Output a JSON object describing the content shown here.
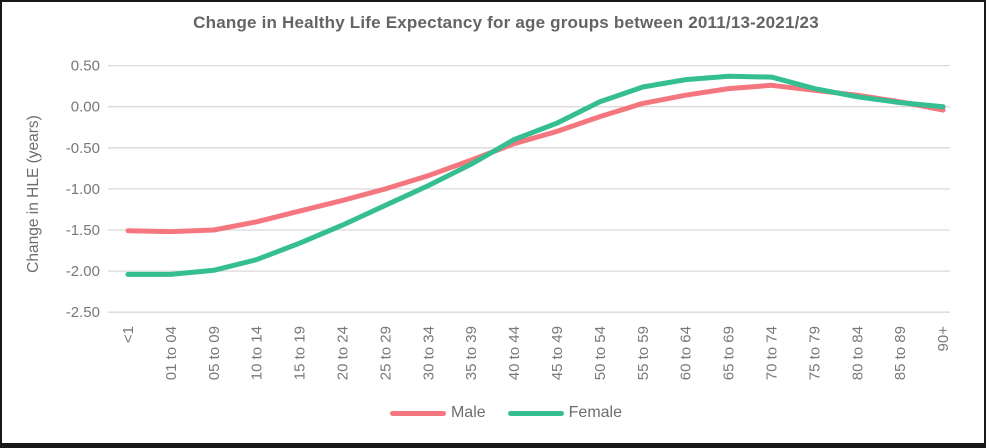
{
  "title": "Change in Healthy Life Expectancy for age groups between 2011/13-2021/23",
  "colors": {
    "title_text": "#636466",
    "axis_text": "#77787b",
    "axis_title_text": "#6d6e71",
    "gridline": "#dadada",
    "background": "#ffffff",
    "frame_border": "#181818",
    "male_line": "#f4777f",
    "female_line": "#34be92"
  },
  "chart_data": {
    "type": "line",
    "title": "Change in Healthy Life Expectancy for age groups between 2011/13-2021/23",
    "xlabel": "",
    "ylabel": "Change in HLE (years)",
    "ylim": [
      -2.5,
      0.5
    ],
    "grid": "horizontal",
    "legend_position": "bottom",
    "ytick_values": [
      0.5,
      0.0,
      -0.5,
      -1.0,
      -1.5,
      -2.0,
      -2.5
    ],
    "ytick_labels": [
      "0.50",
      "0.00",
      "-0.50",
      "-1.00",
      "-1.50",
      "-2.00",
      "-2.50"
    ],
    "categories": [
      "<1",
      "01 to 04",
      "05 to 09",
      "10 to 14",
      "15 to 19",
      "20 to 24",
      "25 to 29",
      "30 to 34",
      "35 to 39",
      "40 to 44",
      "45 to 49",
      "50 to 54",
      "55 to 59",
      "60 to 64",
      "65 to 69",
      "70 to 74",
      "75 to 79",
      "80 to 84",
      "85 to 89",
      "90+"
    ],
    "series": [
      {
        "name": "Male",
        "color": "#f4777f",
        "values": [
          -1.51,
          -1.52,
          -1.5,
          -1.4,
          -1.27,
          -1.14,
          -1.0,
          -0.84,
          -0.65,
          -0.45,
          -0.3,
          -0.12,
          0.04,
          0.14,
          0.22,
          0.26,
          0.2,
          0.14,
          0.06,
          -0.04
        ]
      },
      {
        "name": "Female",
        "color": "#34be92",
        "values": [
          -2.04,
          -2.04,
          -1.99,
          -1.86,
          -1.66,
          -1.44,
          -1.2,
          -0.96,
          -0.7,
          -0.4,
          -0.2,
          0.06,
          0.24,
          0.33,
          0.37,
          0.36,
          0.22,
          0.12,
          0.05,
          0.0
        ]
      }
    ]
  }
}
